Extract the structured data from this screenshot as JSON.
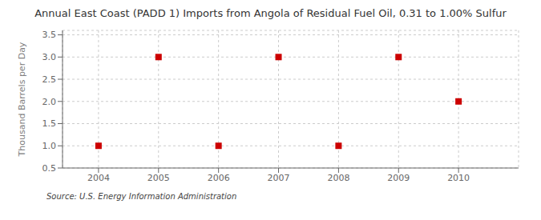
{
  "chart_data": {
    "type": "scatter",
    "title": "Annual East Coast (PADD 1) Imports from Angola of Residual Fuel Oil, 0.31 to 1.00% Sulfur",
    "ylabel": "Thousand Barrels per Day",
    "source": "Source: U.S. Energy Information Administration",
    "x": [
      2004,
      2005,
      2006,
      2007,
      2008,
      2009,
      2010
    ],
    "values": [
      1.0,
      3.0,
      1.0,
      3.0,
      1.0,
      3.0,
      2.0
    ],
    "color": "#cc0000",
    "marker": "square",
    "xlim": [
      2003.4,
      2011.0
    ],
    "ylim": [
      0.5,
      3.6
    ],
    "xticks": [
      2004,
      2005,
      2006,
      2007,
      2008,
      2009,
      2010
    ],
    "yticks": [
      0.5,
      {
        "value": 1,
        "label": "1.0"
      },
      1.5,
      {
        "value": 2,
        "label": "2.0"
      },
      2.5,
      {
        "value": 3,
        "label": "3.0"
      },
      3.5
    ],
    "grid": true
  }
}
